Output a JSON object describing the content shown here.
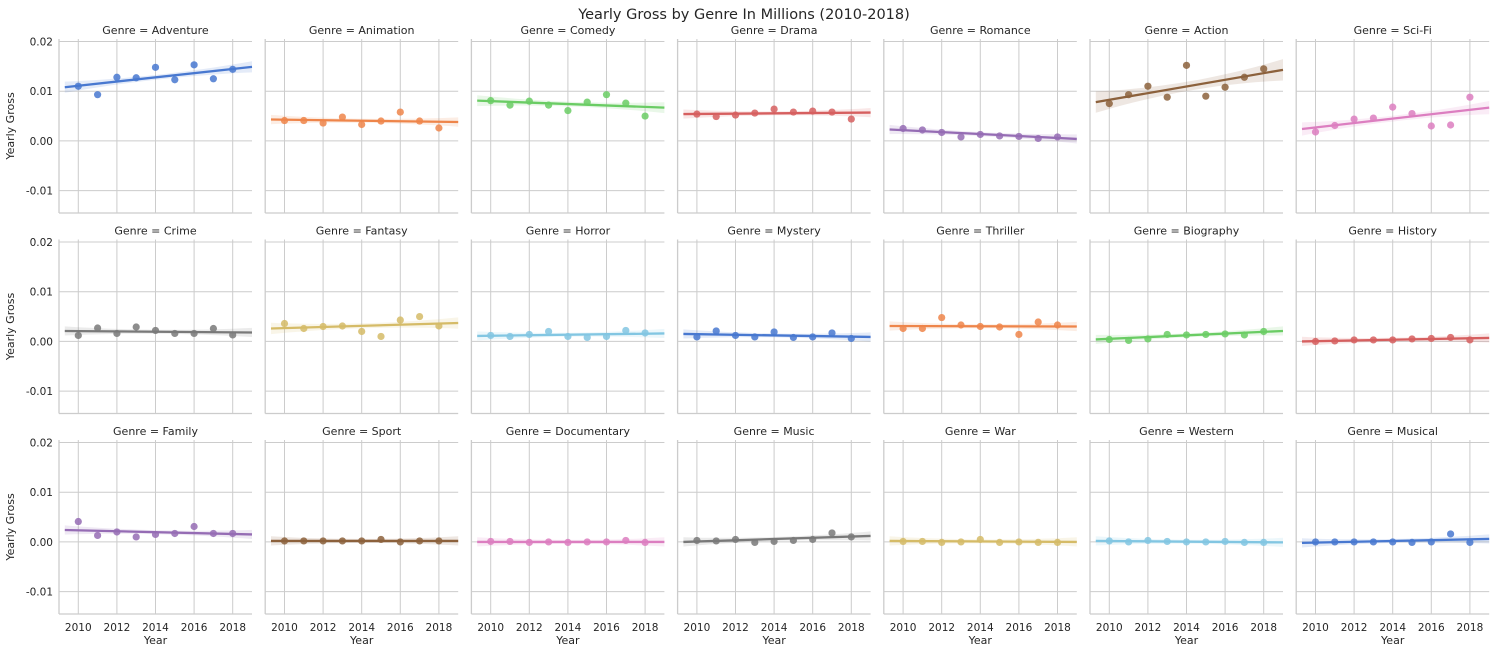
{
  "figure": {
    "title": "Yearly Gross by Genre In Millions (2010-2018)"
  },
  "chart_data": {
    "type": "scatter",
    "facet_grid": {
      "rows": 3,
      "cols": 7,
      "facet_label_prefix": "Genre = "
    },
    "xlabel": "Year",
    "ylabel": "Yearly Gross",
    "x_ticks": [
      "2010",
      "2012",
      "2014",
      "2016",
      "2018"
    ],
    "y_ticks": [
      "0.02",
      "0.01",
      "0.00",
      "-0.01"
    ],
    "xlim": [
      2009,
      2019
    ],
    "ylim": [
      -0.0145,
      0.0205
    ],
    "grid": true,
    "regression_line": true,
    "confidence_band": true,
    "x": [
      2010,
      2011,
      2012,
      2013,
      2014,
      2015,
      2016,
      2017,
      2018
    ],
    "series": [
      {
        "name": "Adventure",
        "color": "#4878d0",
        "values": [
          0.011,
          0.0093,
          0.0128,
          0.0127,
          0.0148,
          0.0123,
          0.0153,
          0.0125,
          0.0144
        ],
        "fit": [
          0.0108,
          0.0149
        ]
      },
      {
        "name": "Animation",
        "color": "#ee854a",
        "values": [
          0.0041,
          0.0041,
          0.0036,
          0.0048,
          0.0033,
          0.004,
          0.0058,
          0.004,
          0.0026
        ],
        "fit": [
          0.0043,
          0.0038
        ]
      },
      {
        "name": "Comedy",
        "color": "#6acc64",
        "values": [
          0.0081,
          0.0072,
          0.008,
          0.0072,
          0.0061,
          0.0078,
          0.0093,
          0.0076,
          0.005
        ],
        "fit": [
          0.0081,
          0.0067
        ]
      },
      {
        "name": "Drama",
        "color": "#d65f5f",
        "values": [
          0.0054,
          0.0049,
          0.0052,
          0.0056,
          0.0064,
          0.0058,
          0.006,
          0.0058,
          0.0044
        ],
        "fit": [
          0.0054,
          0.0057
        ]
      },
      {
        "name": "Romance",
        "color": "#956cb4",
        "values": [
          0.0025,
          0.0022,
          0.0017,
          0.0008,
          0.0013,
          0.001,
          0.0009,
          0.0005,
          0.0008
        ],
        "fit": [
          0.0023,
          0.0004
        ]
      },
      {
        "name": "Action",
        "color": "#8c613c",
        "values": [
          0.0075,
          0.0093,
          0.011,
          0.0088,
          0.0152,
          0.009,
          0.0108,
          0.0128,
          0.0145
        ],
        "fit": [
          0.0078,
          0.0143
        ]
      },
      {
        "name": "Sci-Fi",
        "color": "#dc7ec0",
        "values": [
          0.0018,
          0.0031,
          0.0044,
          0.0046,
          0.0068,
          0.0055,
          0.003,
          0.0032,
          0.0088
        ],
        "fit": [
          0.0024,
          0.0067
        ]
      },
      {
        "name": "Crime",
        "color": "#797979",
        "values": [
          0.0012,
          0.0027,
          0.0016,
          0.0029,
          0.0022,
          0.0016,
          0.0016,
          0.0026,
          0.0013
        ],
        "fit": [
          0.0021,
          0.0018
        ]
      },
      {
        "name": "Fantasy",
        "color": "#d5bb67",
        "values": [
          0.0036,
          0.0026,
          0.003,
          0.0031,
          0.002,
          0.001,
          0.0043,
          0.005,
          0.0031
        ],
        "fit": [
          0.0026,
          0.0037
        ]
      },
      {
        "name": "Horror",
        "color": "#82c6e2",
        "values": [
          0.0012,
          0.001,
          0.0014,
          0.002,
          0.001,
          0.0008,
          0.001,
          0.0022,
          0.0017
        ],
        "fit": [
          0.0011,
          0.0016
        ]
      },
      {
        "name": "Mystery",
        "color": "#4878d0",
        "values": [
          0.0009,
          0.0021,
          0.0012,
          0.0009,
          0.0019,
          0.0008,
          0.0009,
          0.0017,
          0.0006
        ],
        "fit": [
          0.0015,
          0.0009
        ]
      },
      {
        "name": "Thriller",
        "color": "#ee854a",
        "values": [
          0.0026,
          0.0026,
          0.0048,
          0.0033,
          0.003,
          0.0029,
          0.0014,
          0.0039,
          0.0033
        ],
        "fit": [
          0.0031,
          0.003
        ]
      },
      {
        "name": "Biography",
        "color": "#6acc64",
        "values": [
          0.0004,
          0.0002,
          0.0005,
          0.0014,
          0.0013,
          0.0014,
          0.0015,
          0.0013,
          0.002
        ],
        "fit": [
          0.0004,
          0.0021
        ]
      },
      {
        "name": "History",
        "color": "#d65f5f",
        "values": [
          0.0,
          0.0001,
          0.0003,
          0.0003,
          0.0003,
          0.0005,
          0.0006,
          0.0008,
          0.0003
        ],
        "fit": [
          0.0,
          0.0007
        ]
      },
      {
        "name": "Family",
        "color": "#956cb4",
        "values": [
          0.0041,
          0.0013,
          0.002,
          0.001,
          0.0015,
          0.0017,
          0.0031,
          0.0017,
          0.0017
        ],
        "fit": [
          0.0024,
          0.0015
        ]
      },
      {
        "name": "Sport",
        "color": "#8c613c",
        "values": [
          0.0002,
          0.0002,
          0.0002,
          0.0002,
          0.0002,
          0.0005,
          0.0,
          0.0002,
          0.0002
        ],
        "fit": [
          0.0002,
          0.0002
        ]
      },
      {
        "name": "Documentary",
        "color": "#dc7ec0",
        "values": [
          0.0001,
          0.0001,
          -0.0001,
          0.0,
          -0.0001,
          0.0,
          0.0,
          0.0003,
          -0.0001
        ],
        "fit": [
          0.0,
          0.0
        ]
      },
      {
        "name": "Music",
        "color": "#797979",
        "values": [
          0.0003,
          0.0002,
          0.0005,
          -0.0001,
          0.0001,
          0.0003,
          0.0005,
          0.0018,
          0.001
        ],
        "fit": [
          0.0,
          0.0012
        ]
      },
      {
        "name": "War",
        "color": "#d5bb67",
        "values": [
          0.0001,
          0.0001,
          -0.0001,
          0.0,
          0.0005,
          -0.0001,
          0.0,
          -0.0001,
          -0.0001
        ],
        "fit": [
          0.0002,
          0.0
        ]
      },
      {
        "name": "Western",
        "color": "#82c6e2",
        "values": [
          0.0002,
          0.0,
          0.0003,
          0.0001,
          0.0,
          0.0,
          0.0001,
          -0.0001,
          -0.0001
        ],
        "fit": [
          0.0002,
          -0.0001
        ]
      },
      {
        "name": "Musical",
        "color": "#4878d0",
        "values": [
          0.0,
          0.0,
          0.0,
          0.0,
          0.0,
          -0.0001,
          0.0,
          0.0016,
          -0.0001
        ],
        "fit": [
          -0.0002,
          0.0006
        ]
      }
    ]
  }
}
